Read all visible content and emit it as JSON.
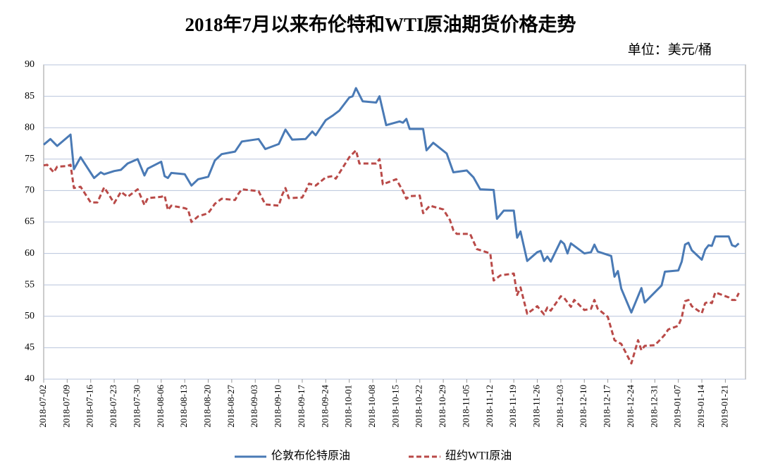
{
  "chart_data": {
    "type": "line",
    "title": "2018年7月以来布伦特和WTI原油期货价格走势",
    "unit_label": "单位：美元/桶",
    "xlim": [
      "2018-07-02",
      "2019-01-27"
    ],
    "xticks": [
      "2018-07-02",
      "2018-07-09",
      "2018-07-16",
      "2018-07-23",
      "2018-07-30",
      "2018-08-06",
      "2018-08-13",
      "2018-08-20",
      "2018-08-27",
      "2018-09-03",
      "2018-09-10",
      "2018-09-17",
      "2018-09-24",
      "2018-10-01",
      "2018-10-08",
      "2018-10-15",
      "2018-10-22",
      "2018-10-29",
      "2018-11-05",
      "2018-11-12",
      "2018-11-19",
      "2018-11-26",
      "2018-12-03",
      "2018-12-10",
      "2018-12-17",
      "2018-12-24",
      "2018-12-31",
      "2019-01-07",
      "2019-01-14",
      "2019-01-21"
    ],
    "ylim": [
      40,
      90
    ],
    "yticks": [
      40,
      45,
      50,
      55,
      60,
      65,
      70,
      75,
      80,
      85,
      90
    ],
    "grid": true,
    "legend": "bottom",
    "series": [
      {
        "name": "伦敦布伦特原油",
        "color": "#4a7ab5",
        "line_style": "solid",
        "x": [
          "2018-07-02",
          "2018-07-04",
          "2018-07-06",
          "2018-07-10",
          "2018-07-11",
          "2018-07-13",
          "2018-07-17",
          "2018-07-19",
          "2018-07-20",
          "2018-07-23",
          "2018-07-25",
          "2018-07-27",
          "2018-07-30",
          "2018-08-01",
          "2018-08-02",
          "2018-08-06",
          "2018-08-07",
          "2018-08-08",
          "2018-08-09",
          "2018-08-13",
          "2018-08-15",
          "2018-08-17",
          "2018-08-20",
          "2018-08-22",
          "2018-08-24",
          "2018-08-28",
          "2018-08-30",
          "2018-09-04",
          "2018-09-06",
          "2018-09-10",
          "2018-09-12",
          "2018-09-14",
          "2018-09-18",
          "2018-09-20",
          "2018-09-21",
          "2018-09-24",
          "2018-09-26",
          "2018-09-28",
          "2018-10-01",
          "2018-10-02",
          "2018-10-03",
          "2018-10-05",
          "2018-10-09",
          "2018-10-10",
          "2018-10-12",
          "2018-10-16",
          "2018-10-17",
          "2018-10-18",
          "2018-10-19",
          "2018-10-23",
          "2018-10-24",
          "2018-10-26",
          "2018-10-30",
          "2018-11-01",
          "2018-11-05",
          "2018-11-07",
          "2018-11-09",
          "2018-11-13",
          "2018-11-14",
          "2018-11-16",
          "2018-11-19",
          "2018-11-20",
          "2018-11-21",
          "2018-11-23",
          "2018-11-26",
          "2018-11-27",
          "2018-11-28",
          "2018-11-29",
          "2018-11-30",
          "2018-12-03",
          "2018-12-04",
          "2018-12-05",
          "2018-12-06",
          "2018-12-10",
          "2018-12-12",
          "2018-12-13",
          "2018-12-14",
          "2018-12-18",
          "2018-12-19",
          "2018-12-20",
          "2018-12-21",
          "2018-12-24",
          "2018-12-27",
          "2018-12-28",
          "2019-01-02",
          "2019-01-03",
          "2019-01-07",
          "2019-01-08",
          "2019-01-09",
          "2019-01-10",
          "2019-01-11",
          "2019-01-14",
          "2019-01-15",
          "2019-01-16",
          "2019-01-17",
          "2019-01-18",
          "2019-01-22",
          "2019-01-23",
          "2019-01-24",
          "2019-01-25"
        ],
        "values": [
          77.3,
          78.2,
          77.1,
          78.9,
          73.4,
          75.3,
          72.0,
          72.9,
          72.6,
          73.1,
          73.3,
          74.3,
          75.0,
          72.4,
          73.5,
          74.6,
          72.3,
          72.0,
          72.8,
          72.6,
          70.8,
          71.8,
          72.2,
          74.8,
          75.8,
          76.2,
          77.8,
          78.2,
          76.6,
          77.4,
          79.7,
          78.1,
          78.2,
          79.4,
          78.8,
          81.2,
          81.9,
          82.7,
          84.8,
          85.0,
          86.3,
          84.2,
          84.0,
          85.0,
          80.4,
          81.0,
          80.8,
          81.4,
          79.8,
          79.8,
          76.4,
          77.6,
          75.9,
          72.9,
          73.2,
          72.1,
          70.2,
          70.1,
          65.5,
          66.8,
          66.8,
          62.5,
          63.5,
          58.8,
          60.2,
          60.4,
          58.8,
          59.5,
          58.7,
          62.0,
          61.5,
          60.0,
          61.6,
          60.0,
          60.2,
          61.4,
          60.3,
          59.6,
          56.3,
          57.2,
          54.4,
          50.6,
          54.5,
          52.2,
          54.9,
          57.1,
          57.3,
          58.7,
          61.4,
          61.7,
          60.5,
          59.0,
          60.6,
          61.3,
          61.2,
          62.7,
          62.7,
          61.3,
          61.1,
          61.6
        ]
      },
      {
        "name": "纽约WTI原油",
        "color": "#b94a48",
        "line_style": "dashed",
        "x": [
          "2018-07-02",
          "2018-07-03",
          "2018-07-05",
          "2018-07-06",
          "2018-07-09",
          "2018-07-10",
          "2018-07-11",
          "2018-07-13",
          "2018-07-16",
          "2018-07-18",
          "2018-07-20",
          "2018-07-23",
          "2018-07-25",
          "2018-07-27",
          "2018-07-30",
          "2018-08-01",
          "2018-08-02",
          "2018-08-06",
          "2018-08-07",
          "2018-08-08",
          "2018-08-09",
          "2018-08-13",
          "2018-08-14",
          "2018-08-15",
          "2018-08-17",
          "2018-08-20",
          "2018-08-22",
          "2018-08-24",
          "2018-08-28",
          "2018-08-29",
          "2018-08-30",
          "2018-09-04",
          "2018-09-06",
          "2018-09-10",
          "2018-09-11",
          "2018-09-12",
          "2018-09-13",
          "2018-09-17",
          "2018-09-18",
          "2018-09-19",
          "2018-09-21",
          "2018-09-24",
          "2018-09-26",
          "2018-09-27",
          "2018-10-01",
          "2018-10-03",
          "2018-10-04",
          "2018-10-09",
          "2018-10-10",
          "2018-10-11",
          "2018-10-15",
          "2018-10-17",
          "2018-10-18",
          "2018-10-19",
          "2018-10-22",
          "2018-10-23",
          "2018-10-25",
          "2018-10-29",
          "2018-10-31",
          "2018-11-01",
          "2018-11-02",
          "2018-11-06",
          "2018-11-08",
          "2018-11-12",
          "2018-11-13",
          "2018-11-15",
          "2018-11-19",
          "2018-11-20",
          "2018-11-21",
          "2018-11-23",
          "2018-11-26",
          "2018-11-28",
          "2018-11-29",
          "2018-11-30",
          "2018-12-03",
          "2018-12-04",
          "2018-12-06",
          "2018-12-07",
          "2018-12-10",
          "2018-12-12",
          "2018-12-13",
          "2018-12-14",
          "2018-12-17",
          "2018-12-19",
          "2018-12-20",
          "2018-12-21",
          "2018-12-24",
          "2018-12-26",
          "2018-12-27",
          "2018-12-28",
          "2018-12-31",
          "2019-01-02",
          "2019-01-03",
          "2019-01-04",
          "2019-01-07",
          "2019-01-08",
          "2019-01-09",
          "2019-01-10",
          "2019-01-11",
          "2019-01-14",
          "2019-01-15",
          "2019-01-16",
          "2019-01-17",
          "2019-01-18",
          "2019-01-22",
          "2019-01-23",
          "2019-01-24",
          "2019-01-25"
        ],
        "values": [
          74.0,
          74.1,
          72.9,
          73.8,
          73.9,
          74.1,
          70.4,
          70.6,
          68.1,
          68.1,
          70.5,
          68.0,
          69.8,
          69.0,
          70.2,
          67.7,
          68.8,
          69.0,
          69.2,
          66.9,
          67.6,
          67.2,
          67.0,
          65.0,
          65.9,
          66.4,
          67.9,
          68.7,
          68.5,
          69.5,
          70.2,
          69.9,
          67.8,
          67.6,
          69.3,
          70.4,
          68.8,
          68.9,
          69.9,
          71.1,
          70.8,
          72.1,
          72.3,
          71.9,
          75.3,
          76.4,
          74.3,
          74.3,
          75.0,
          71.0,
          71.8,
          69.9,
          68.7,
          69.1,
          69.2,
          66.4,
          67.6,
          67.0,
          65.3,
          63.7,
          63.1,
          63.1,
          60.7,
          60.0,
          55.7,
          56.5,
          56.8,
          53.4,
          54.6,
          50.4,
          51.6,
          50.3,
          51.4,
          50.9,
          53.2,
          52.9,
          51.5,
          52.6,
          51.0,
          51.2,
          52.6,
          51.2,
          49.9,
          46.2,
          45.9,
          45.6,
          42.5,
          46.2,
          44.6,
          45.3,
          45.4,
          46.5,
          47.1,
          47.9,
          48.5,
          49.8,
          52.4,
          52.6,
          51.6,
          50.5,
          52.1,
          52.3,
          52.1,
          53.8,
          53.0,
          52.6,
          52.6,
          53.7
        ]
      }
    ]
  }
}
